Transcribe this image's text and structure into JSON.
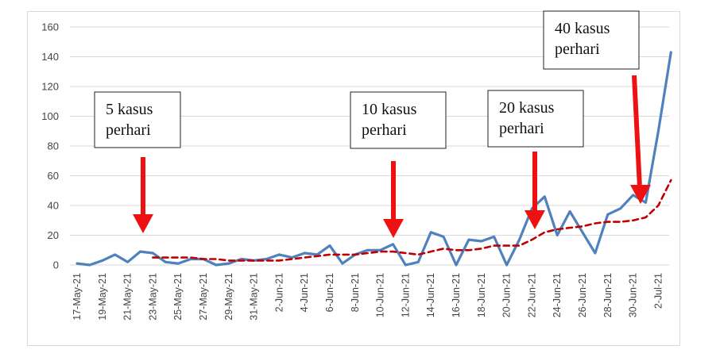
{
  "chart_data": {
    "type": "line",
    "title": "",
    "xlabel": "",
    "ylabel": "",
    "ylim": [
      0,
      160
    ],
    "yticks": [
      "0",
      "20",
      "40",
      "60",
      "80",
      "100",
      "120",
      "140",
      "160"
    ],
    "grid": true,
    "legend": "none",
    "xtick_labels": [
      "17-May-21",
      "19-May-21",
      "21-May-21",
      "23-May-21",
      "25-May-21",
      "27-May-21",
      "29-May-21",
      "31-May-21",
      "2-Jun-21",
      "4-Jun-21",
      "6-Jun-21",
      "8-Jun-21",
      "10-Jun-21",
      "12-Jun-21",
      "14-Jun-21",
      "16-Jun-21",
      "18-Jun-21",
      "20-Jun-21",
      "22-Jun-21",
      "24-Jun-21",
      "26-Jun-21",
      "28-Jun-21",
      "30-Jun-21",
      "2-Jul-21"
    ],
    "x": [
      "17-May-21",
      "18-May-21",
      "19-May-21",
      "20-May-21",
      "21-May-21",
      "22-May-21",
      "23-May-21",
      "24-May-21",
      "25-May-21",
      "26-May-21",
      "27-May-21",
      "28-May-21",
      "29-May-21",
      "30-May-21",
      "31-May-21",
      "1-Jun-21",
      "2-Jun-21",
      "3-Jun-21",
      "4-Jun-21",
      "5-Jun-21",
      "6-Jun-21",
      "7-Jun-21",
      "8-Jun-21",
      "9-Jun-21",
      "10-Jun-21",
      "11-Jun-21",
      "12-Jun-21",
      "13-Jun-21",
      "14-Jun-21",
      "15-Jun-21",
      "16-Jun-21",
      "17-Jun-21",
      "18-Jun-21",
      "19-Jun-21",
      "20-Jun-21",
      "21-Jun-21",
      "22-Jun-21",
      "23-Jun-21",
      "24-Jun-21",
      "25-Jun-21",
      "26-Jun-21",
      "27-Jun-21",
      "28-Jun-21",
      "29-Jun-21",
      "30-Jun-21",
      "1-Jul-21",
      "2-Jul-21",
      "3-Jul-21"
    ],
    "series": [
      {
        "color": "#4f81bd",
        "style": "solid",
        "values": [
          1,
          0,
          3,
          7,
          2,
          9,
          8,
          2,
          1,
          4,
          4,
          0,
          1,
          4,
          3,
          4,
          7,
          5,
          8,
          7,
          13,
          1,
          7,
          10,
          10,
          14,
          0,
          2,
          22,
          19,
          0,
          17,
          16,
          19,
          0,
          17,
          38,
          46,
          20,
          36,
          22,
          8,
          34,
          38,
          47,
          42,
          90,
          143
        ]
      },
      {
        "color": "#c00000",
        "style": "dashed",
        "values": [
          null,
          null,
          null,
          null,
          null,
          null,
          5,
          5,
          5,
          5,
          4,
          4,
          3,
          3,
          3,
          3,
          3,
          4,
          5,
          6,
          7,
          7,
          7,
          8,
          9,
          9,
          8,
          7,
          9,
          11,
          10,
          10,
          11,
          13,
          13,
          13,
          17,
          22,
          24,
          25,
          26,
          28,
          29,
          29,
          30,
          32,
          40,
          57
        ]
      }
    ],
    "annotations": [
      {
        "text_lines": [
          "5 kasus",
          "perhari"
        ],
        "arrow_index": 5,
        "arrow_color": "#ee1111"
      },
      {
        "text_lines": [
          "10 kasus",
          "perhari"
        ],
        "arrow_index": 26,
        "arrow_color": "#ee1111"
      },
      {
        "text_lines": [
          "20 kasus",
          "perhari"
        ],
        "arrow_index": 38,
        "arrow_color": "#ee1111"
      },
      {
        "text_lines": [
          "40 kasus",
          "perhari"
        ],
        "arrow_index": 46,
        "arrow_color": "#ee1111"
      }
    ]
  }
}
